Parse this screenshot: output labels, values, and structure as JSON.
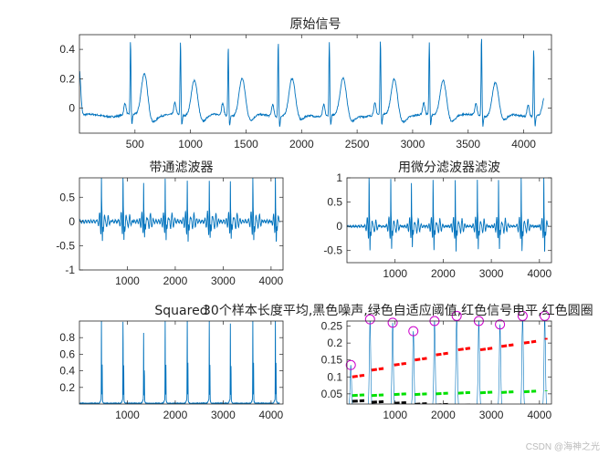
{
  "watermark": "CSDN @海神之光",
  "line_color": "#0072bd",
  "chart_data": [
    {
      "type": "line",
      "title": "原始信号",
      "xlim": [
        0,
        4250
      ],
      "ylim": [
        -0.17,
        0.5
      ],
      "xticks": [
        500,
        1000,
        1500,
        2000,
        2500,
        3000,
        3500,
        4000
      ],
      "yticks": [
        0,
        0.2,
        0.4
      ],
      "r_peaks_x": [
        460,
        910,
        1340,
        1790,
        2250,
        2710,
        3150,
        3620,
        4090
      ],
      "r_peaks_y": [
        0.46,
        0.46,
        0.43,
        0.47,
        0.46,
        0.47,
        0.44,
        0.5,
        0.41
      ],
      "t_wave_peak_y": [
        0.26,
        0.22,
        0.23,
        0.22,
        0.22,
        0.22,
        0.22,
        0.2,
        0.24
      ],
      "baseline": -0.05
    },
    {
      "type": "line",
      "title": "带通滤波器",
      "xlim": [
        0,
        4250
      ],
      "ylim": [
        -1,
        0.9
      ],
      "xticks": [
        1000,
        2000,
        3000,
        4000
      ],
      "yticks": [
        -1,
        -0.5,
        0,
        0.5
      ],
      "peaks_x": [
        460,
        910,
        1340,
        1790,
        2250,
        2710,
        3150,
        3620,
        4090
      ],
      "peaks_max": [
        0.88,
        0.88,
        0.82,
        0.9,
        0.88,
        0.85,
        0.85,
        0.9,
        0.9
      ],
      "peaks_min": [
        -0.6,
        -0.58,
        -0.52,
        -0.56,
        -0.62,
        -0.55,
        -0.55,
        -0.6,
        -0.58
      ]
    },
    {
      "type": "line",
      "title": "用微分滤波器滤波",
      "xlim": [
        0,
        4250
      ],
      "ylim": [
        -0.75,
        1
      ],
      "xticks": [
        1000,
        2000,
        3000,
        4000
      ],
      "yticks": [
        -0.5,
        0,
        0.5,
        1
      ],
      "peaks_x": [
        460,
        910,
        1340,
        1790,
        2250,
        2710,
        3150,
        3620,
        4090
      ],
      "peaks_max": [
        0.98,
        0.97,
        0.9,
        0.97,
        0.97,
        0.97,
        0.97,
        1.0,
        1.0
      ],
      "peaks_min": [
        -0.68,
        -0.65,
        -0.62,
        -0.68,
        -0.7,
        -0.66,
        -0.66,
        -0.7,
        -0.7
      ]
    },
    {
      "type": "line",
      "title": "Squared",
      "xlim": [
        0,
        4250
      ],
      "ylim": [
        0,
        1
      ],
      "xticks": [
        1000,
        2000,
        3000,
        4000
      ],
      "yticks": [
        0.2,
        0.4,
        0.6,
        0.8
      ],
      "peaks_x": [
        460,
        910,
        1340,
        1790,
        2250,
        2710,
        3150,
        3620,
        4090
      ],
      "peaks_y": [
        0.95,
        0.93,
        0.8,
        0.95,
        1.0,
        0.94,
        0.91,
        1.0,
        1.0
      ]
    },
    {
      "type": "line",
      "title": "30个样本长度平均,黑色噪声,绿色自适应阈值,红色信号电平,红色圆圈",
      "xlim": [
        0,
        4250
      ],
      "ylim": [
        0.02,
        0.265
      ],
      "xticks": [
        1000,
        2000,
        3000,
        4000
      ],
      "yticks": [
        0.05,
        0.1,
        0.15,
        0.2,
        0.25
      ],
      "peaks_x": [
        80,
        480,
        950,
        1380,
        1820,
        2280,
        2740,
        3180,
        3650,
        4110
      ],
      "peaks_y": [
        0.135,
        0.27,
        0.26,
        0.235,
        0.265,
        0.28,
        0.265,
        0.255,
        0.28,
        0.28
      ],
      "series": [
        {
          "color": "#ff0000",
          "values": [
            0.1,
            0.12,
            0.135,
            0.15,
            0.165,
            0.18,
            0.18,
            0.19,
            0.2,
            0.21
          ]
        },
        {
          "color": "#00e000",
          "values": [
            0.045,
            0.045,
            0.048,
            0.048,
            0.05,
            0.052,
            0.053,
            0.054,
            0.056,
            0.058
          ]
        },
        {
          "color": "#000000",
          "values": [
            0.028,
            0.025,
            0.022,
            0.019,
            0.017,
            0.015,
            0.013,
            0.012,
            0.012,
            0.012
          ]
        }
      ],
      "circle_color": "#cc00cc"
    }
  ]
}
